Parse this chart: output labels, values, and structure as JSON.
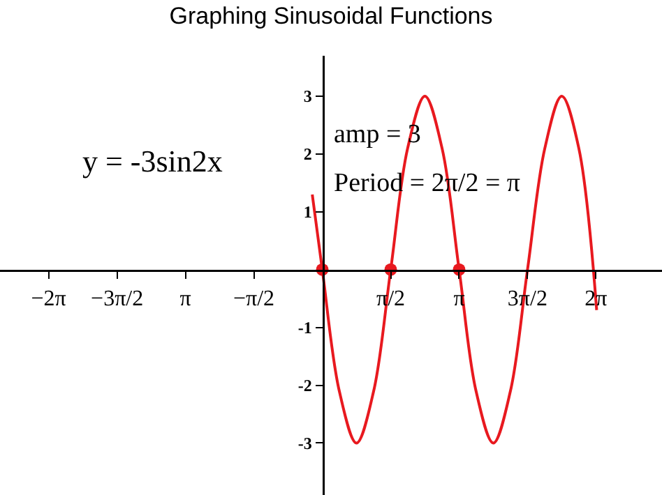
{
  "chart_data": {
    "type": "line",
    "title": "Graphing Sinusoidal Functions",
    "annotations": [
      "y = -3sin2x",
      "amp = 3",
      "Period = 2π/2 = π"
    ],
    "xlim": [
      -7.4,
      7.8
    ],
    "ylim": [
      -3.9,
      3.7
    ],
    "xticks": [
      {
        "value": -6.283,
        "label": "−2π"
      },
      {
        "value": -4.712,
        "label": "−3π/2"
      },
      {
        "value": -3.142,
        "label": "π"
      },
      {
        "value": -1.571,
        "label": "−π/2"
      },
      {
        "value": 1.571,
        "label": "π/2"
      },
      {
        "value": 3.142,
        "label": "π"
      },
      {
        "value": 4.712,
        "label": "3π/2"
      },
      {
        "value": 6.283,
        "label": "2π"
      }
    ],
    "yticks": [
      -3,
      -2,
      -1,
      1,
      2,
      3
    ],
    "grid": false,
    "legend": false,
    "series": [
      {
        "color": "#e8191f",
        "line_style": "solid",
        "x": [
          -0.23,
          0,
          0.39,
          0.785,
          1.18,
          1.571,
          1.96,
          2.356,
          2.75,
          3.142,
          3.53,
          3.927,
          4.32,
          4.712,
          5.11,
          5.498,
          5.89,
          6.3
        ],
        "values": [
          1.3,
          0,
          -2.1,
          -3,
          -2.1,
          0,
          2.1,
          3,
          2.1,
          0,
          -2.1,
          -3,
          -2.1,
          0,
          2.1,
          3,
          2.1,
          -0.7
        ]
      },
      {
        "type": "scatter",
        "color": "#e8191f",
        "marker": "circle",
        "x": [
          0,
          1.571,
          3.142
        ],
        "values": [
          0,
          0,
          0
        ]
      }
    ]
  }
}
